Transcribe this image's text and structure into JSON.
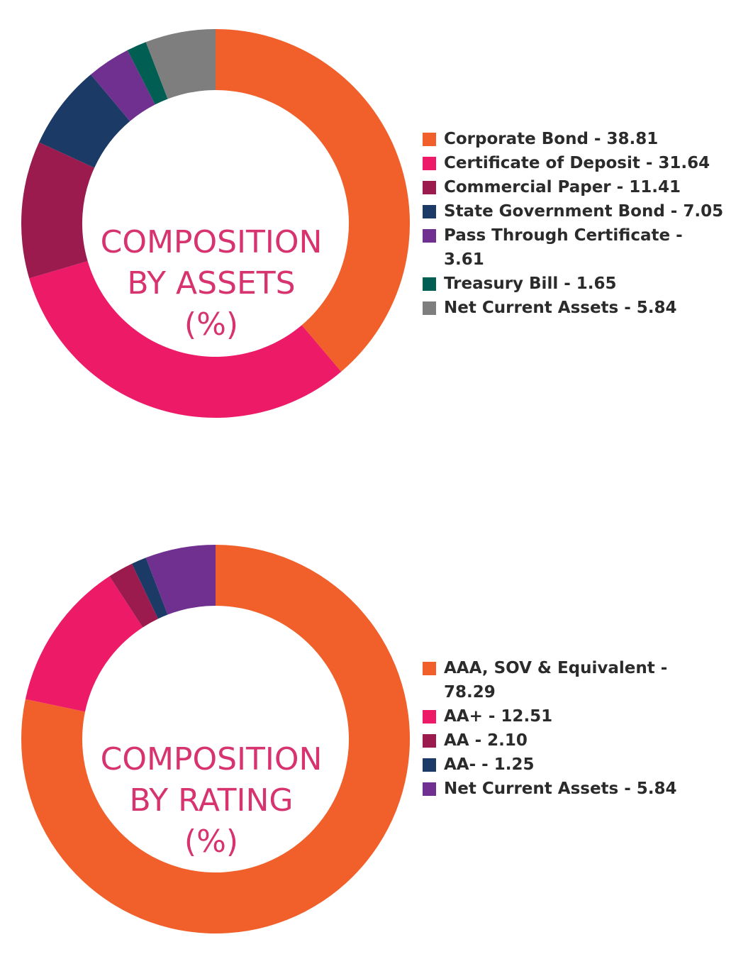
{
  "chart_data": [
    {
      "type": "pie",
      "title": "COMPOSITION BY ASSETS (%)",
      "title_lines": [
        "COMPOSITION",
        "BY ASSETS",
        "(%)"
      ],
      "categories": [
        "Corporate Bond",
        "Certificate of Deposit",
        "Commercial Paper",
        "State Government Bond",
        "Pass Through Certificate",
        "Treasury Bill",
        "Net Current Assets"
      ],
      "values": [
        38.81,
        31.64,
        11.41,
        7.05,
        3.61,
        1.65,
        5.84
      ],
      "colors": [
        "#f15f2a",
        "#ec1a67",
        "#9b1b4e",
        "#1c3a66",
        "#70308f",
        "#005e52",
        "#7e7e7e"
      ],
      "legend_labels": [
        "Corporate Bond - 38.81",
        "Certificate of Deposit - 31.64",
        "Commercial Paper - 11.41",
        "State Government Bond - 7.05",
        "Pass Through Certificate - 3.61",
        "Treasury Bill - 1.65",
        "Net Current Assets - 5.84"
      ],
      "legend_placement": "right"
    },
    {
      "type": "pie",
      "title": "COMPOSITION BY RATING (%)",
      "title_lines": [
        "COMPOSITION",
        "BY RATING",
        "(%)"
      ],
      "categories": [
        "AAA, SOV & Equivalent",
        "AA+",
        "AA",
        "AA-",
        "Net Current Assets"
      ],
      "values": [
        78.29,
        12.51,
        2.1,
        1.25,
        5.84
      ],
      "colors": [
        "#f15f2a",
        "#ec1a67",
        "#9b1b4e",
        "#1c3a66",
        "#70308f"
      ],
      "legend_labels": [
        "AAA, SOV & Equivalent - 78.29",
        "AA+ - 12.51",
        "AA - 2.10",
        "AA- - 1.25",
        "Net Current Assets - 5.84"
      ],
      "legend_placement": "right"
    }
  ]
}
